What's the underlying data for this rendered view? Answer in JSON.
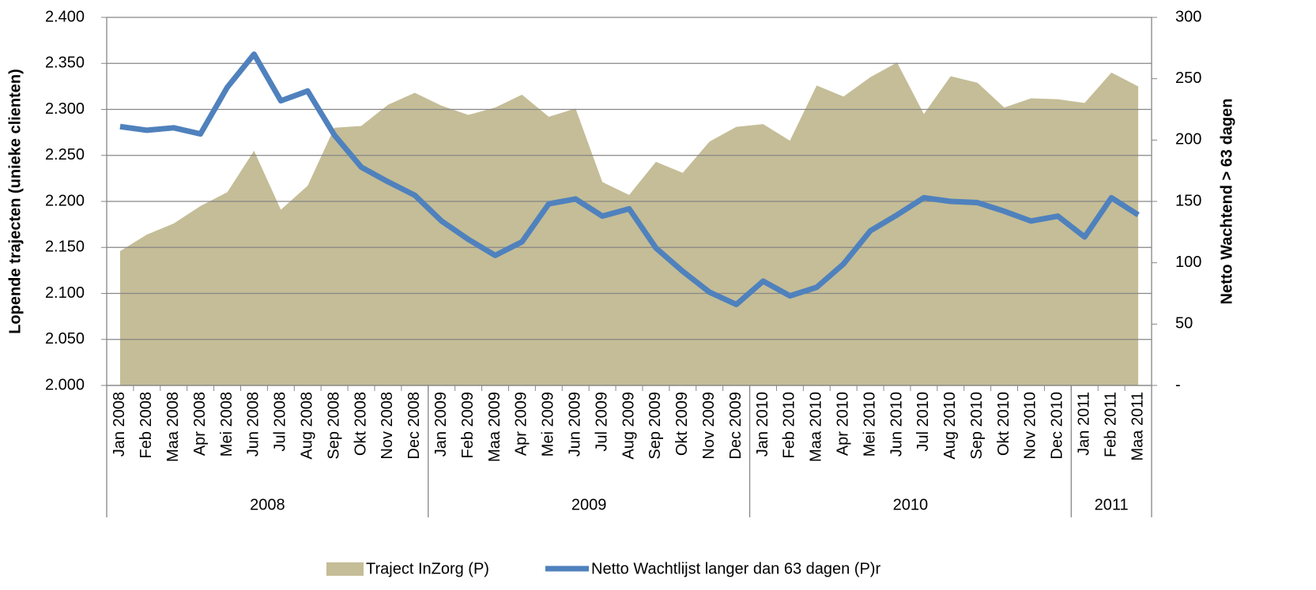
{
  "chart_data": {
    "type": "line",
    "y_label": "Lopende trajecten (unieke clienten)",
    "y2_label": "Netto Wachtend > 63 dagen",
    "categories": [
      "Jan 2008",
      "Feb 2008",
      "Maa 2008",
      "Apr 2008",
      "Mei 2008",
      "Jun 2008",
      "Jul 2008",
      "Aug 2008",
      "Sep 2008",
      "Okt 2008",
      "Nov 2008",
      "Dec 2008",
      "Jan 2009",
      "Feb 2009",
      "Maa 2009",
      "Apr 2009",
      "Mei 2009",
      "Jun 2009",
      "Jul 2009",
      "Aug 2009",
      "Sep 2009",
      "Okt 2009",
      "Nov 2009",
      "Dec 2009",
      "Jan 2010",
      "Feb 2010",
      "Maa 2010",
      "Apr 2010",
      "Mei 2010",
      "Jun 2010",
      "Jul 2010",
      "Aug 2010",
      "Sep 2010",
      "Okt 2010",
      "Nov 2010",
      "Dec 2010",
      "Jan 2011",
      "Feb 2011",
      "Maa 2011"
    ],
    "year_groups": [
      "2008",
      "2009",
      "2010",
      "2011"
    ],
    "series": [
      {
        "name": "Traject InZorg (P)",
        "type": "area",
        "color": "#c4bd97",
        "values": [
          2146,
          2164,
          2176,
          2195,
          2210,
          2255,
          2191,
          2217,
          2280,
          2282,
          2305,
          2318,
          2304,
          2294,
          2302,
          2316,
          2292,
          2301,
          2221,
          2207,
          2243,
          2231,
          2265,
          2281,
          2284,
          2266,
          2326,
          2314,
          2335,
          2351,
          2295,
          2336,
          2329,
          2302,
          2312,
          2311,
          2307,
          2340,
          2325
        ]
      },
      {
        "name": "Netto Wachtlijst langer dan 63 dagen (P)r",
        "type": "line",
        "axis": "y2",
        "color": "#4f81bd",
        "values": [
          211,
          208,
          210,
          205,
          243,
          270,
          232,
          240,
          204,
          178,
          166,
          155,
          134,
          119,
          106,
          117,
          148,
          152,
          138,
          144,
          112,
          93,
          76,
          66,
          85,
          73,
          80,
          99,
          126,
          139,
          153,
          150,
          149,
          142,
          134,
          138,
          121,
          153,
          139
        ]
      }
    ],
    "ylim": [
      2000,
      2400
    ],
    "yticks": [
      {
        "value": 2000,
        "label": "2.000"
      },
      {
        "value": 2050,
        "label": "2.050"
      },
      {
        "value": 2100,
        "label": "2.100"
      },
      {
        "value": 2150,
        "label": "2.150"
      },
      {
        "value": 2200,
        "label": "2.200"
      },
      {
        "value": 2250,
        "label": "2.250"
      },
      {
        "value": 2300,
        "label": "2.300"
      },
      {
        "value": 2350,
        "label": "2.350"
      },
      {
        "value": 2400,
        "label": "2.400"
      }
    ],
    "y2lim": [
      0,
      300
    ],
    "y2ticks": [
      {
        "value": 0,
        "label": "-"
      },
      50,
      100,
      150,
      200,
      250,
      300
    ],
    "grid": true
  }
}
